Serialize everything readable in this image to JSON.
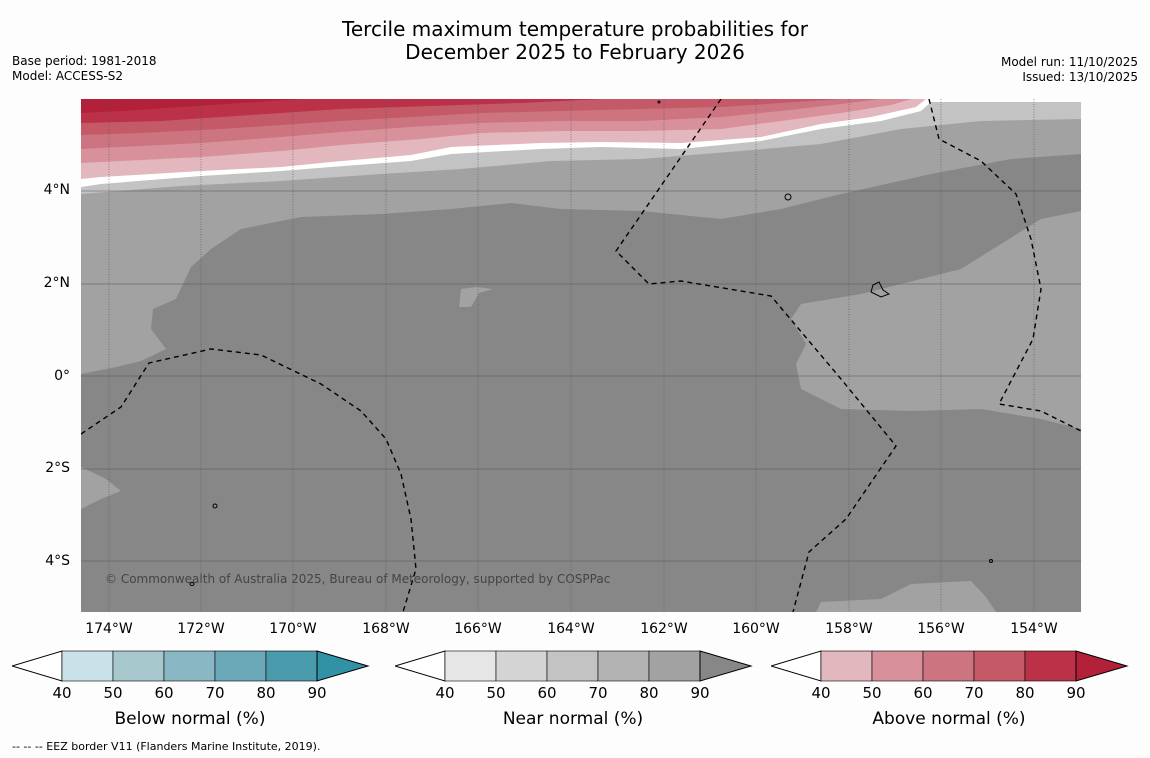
{
  "title_line1": "Tercile maximum temperature probabilities for",
  "title_line2": "December 2025 to February 2026",
  "meta_left": {
    "base_period": "Base period: 1981-2018",
    "model": "Model: ACCESS-S2"
  },
  "meta_right": {
    "model_run": "Model run: 11/10/2025",
    "issued": "Issued: 13/10/2025"
  },
  "lat_labels": [
    "4°N",
    "2°N",
    "0°",
    "2°S",
    "4°S"
  ],
  "lon_labels": [
    "174°W",
    "172°W",
    "170°W",
    "168°W",
    "166°W",
    "164°W",
    "162°W",
    "160°W",
    "158°W",
    "156°W",
    "154°W"
  ],
  "copyright": "© Commonwealth of Australia 2025, Bureau of Meteorology, supported by COSPPac",
  "legends": [
    {
      "title": "Below normal (%)",
      "ticks": [
        "40",
        "50",
        "60",
        "70",
        "80",
        "90"
      ],
      "colors": [
        "#ffffff",
        "#c9e1e8",
        "#a6c7cc",
        "#8ab7c4",
        "#6ca9b8",
        "#4a9cac",
        "#3092a4"
      ]
    },
    {
      "title": "Near normal (%)",
      "ticks": [
        "40",
        "50",
        "60",
        "70",
        "80",
        "90"
      ],
      "colors": [
        "#ffffff",
        "#e6e6e6",
        "#d4d4d4",
        "#c3c3c3",
        "#b3b3b3",
        "#a2a2a2",
        "#878787"
      ]
    },
    {
      "title": "Above normal (%)",
      "ticks": [
        "40",
        "50",
        "60",
        "70",
        "80",
        "90"
      ],
      "colors": [
        "#ffffff",
        "#e2b7bd",
        "#d8919a",
        "#cc7580",
        "#c45a68",
        "#ba3148",
        "#b3203a"
      ]
    }
  ],
  "footer": "--  --  -- EEZ border V11 (Flanders Marine Institute, 2019).",
  "palette": {
    "near_high": "#878787",
    "near_mid": "#a2a2a2",
    "near_low": "#c3c3c3",
    "near_lowest": "#d4d4d4",
    "above_1": "#e2b7bd",
    "above_2": "#d8919a",
    "above_3": "#cc7580",
    "above_4": "#c45a68",
    "above_5": "#ba3148",
    "above_6": "#b3203a"
  }
}
